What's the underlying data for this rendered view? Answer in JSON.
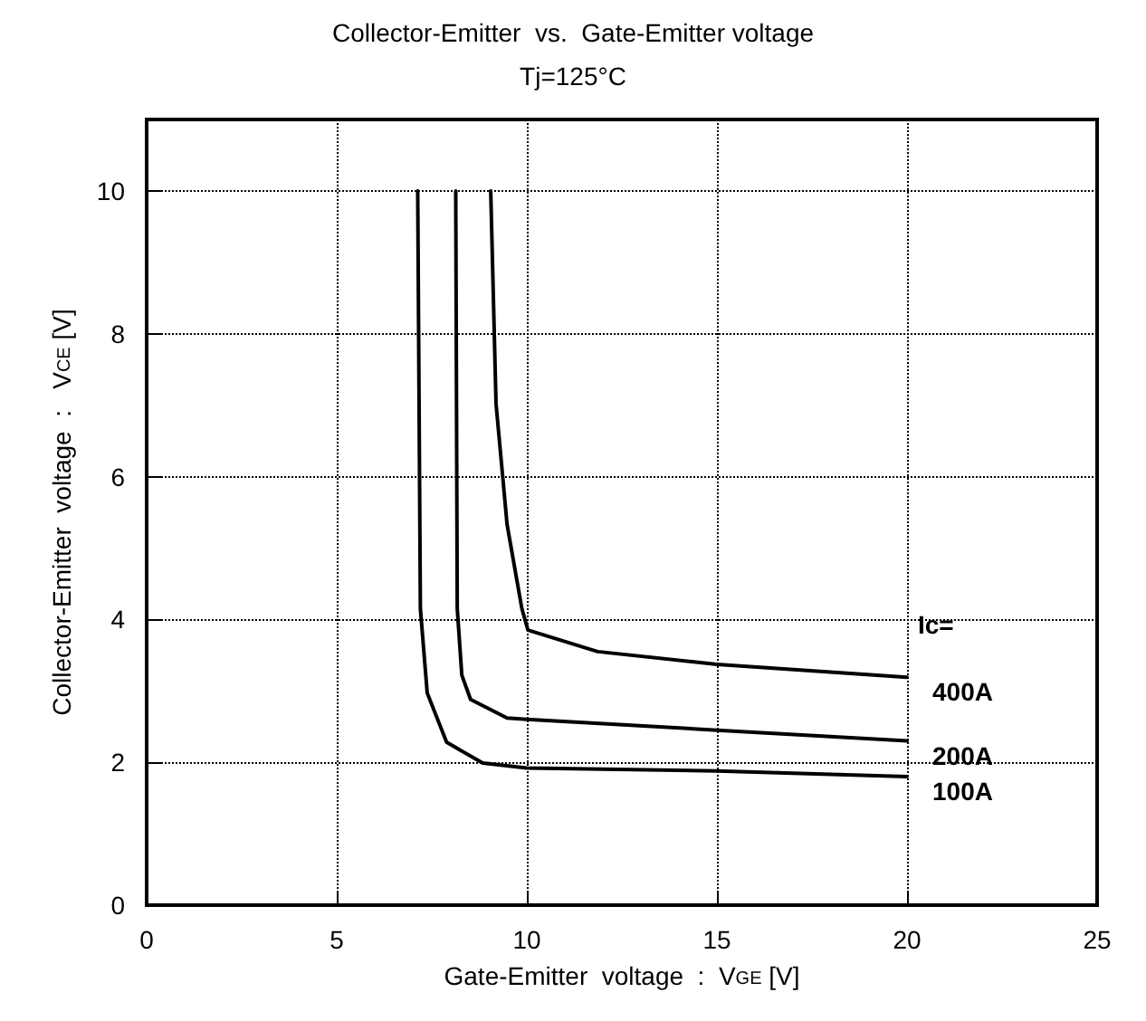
{
  "chart_data": {
    "type": "line",
    "title": "Collector-Emitter  vs.  Gate-Emitter voltage",
    "subtitle": "Tj=125°C",
    "xlabel": "Gate-Emitter  voltage  :  V$_{GE}$ [V]",
    "ylabel": "Collector-Emitter  voltage  :   V$_{CE}$ [V]",
    "xlim": [
      0,
      25
    ],
    "xticks": [
      0,
      5,
      10,
      15,
      20,
      25
    ],
    "ylim": [
      0,
      11
    ],
    "yticks": [
      0,
      2,
      4,
      6,
      8,
      10
    ],
    "grid": true,
    "legend": false,
    "marker": "none",
    "line_style": "solid",
    "annotations": [
      "Ic="
    ],
    "series": [
      {
        "name": "400A",
        "color": "#000000",
        "x": [
          9.05,
          9.19,
          9.48,
          9.87,
          10.03,
          11.86,
          15,
          20
        ],
        "values": [
          10,
          7.02,
          5.33,
          4.15,
          3.85,
          3.55,
          3.37,
          3.19
        ]
      },
      {
        "name": "200A",
        "color": "#000000",
        "x": [
          8.13,
          8.17,
          8.29,
          8.52,
          9.48,
          10,
          15,
          20
        ],
        "values": [
          10,
          4.15,
          3.22,
          2.88,
          2.62,
          2.6,
          2.45,
          2.3
        ]
      },
      {
        "name": "100A",
        "color": "#000000",
        "x": [
          7.13,
          7.2,
          7.38,
          7.89,
          8.84,
          10,
          15,
          20
        ],
        "values": [
          10,
          4.15,
          2.97,
          2.28,
          1.99,
          1.92,
          1.88,
          1.8
        ]
      }
    ]
  }
}
